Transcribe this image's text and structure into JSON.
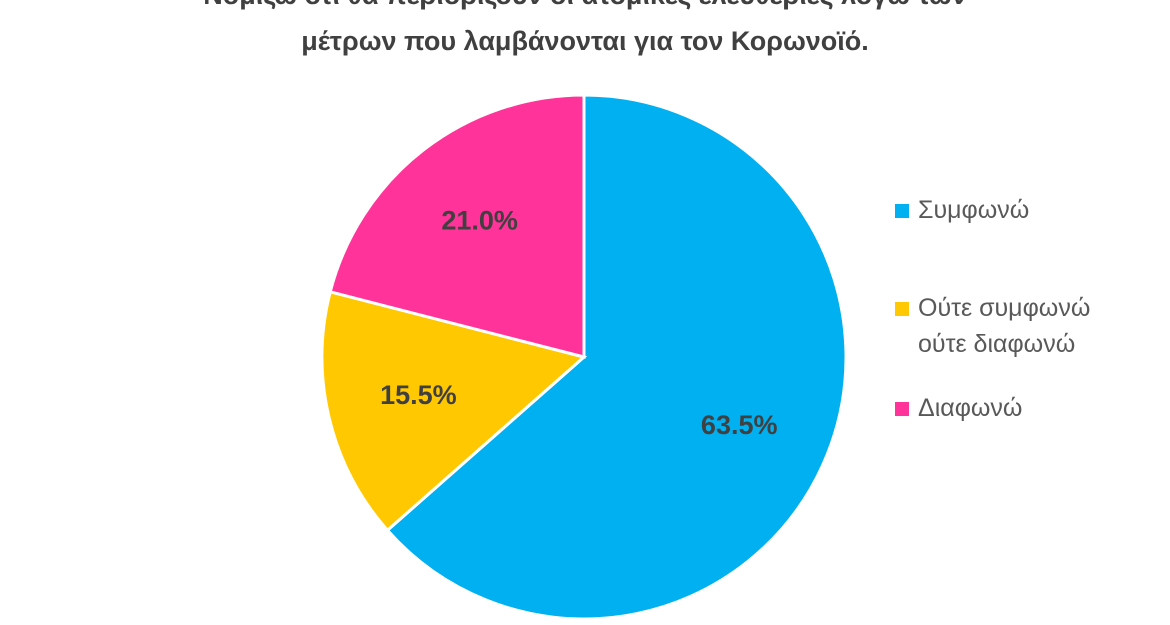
{
  "title_line1": "Νομίζω ότι θα περιορίζουν οι ατομικές ελευθερίες λόγω των",
  "title_line2": "μέτρων που λαμβάνονται για τον Κορωνοϊό.",
  "chart_data": {
    "type": "pie",
    "title": "Νομίζω ότι θα περιορίζουν οι ατομικές ελευθερίες λόγω των μέτρων που λαμβάνονται για τον Κορωνοϊό.",
    "categories": [
      "Συμφωνώ",
      "Ούτε συμφωνώ ούτε διαφωνώ",
      "Διαφωνώ"
    ],
    "values": [
      63.5,
      15.5,
      21.0
    ],
    "data_labels": [
      "63.5%",
      "15.5%",
      "21.0%"
    ],
    "colors": [
      "#00B0F0",
      "#FFC800",
      "#FF3399"
    ],
    "legend_position": "right"
  },
  "legend": {
    "items": [
      {
        "label": "Συμφωνώ",
        "color": "#00B0F0"
      },
      {
        "label": "Ούτε συμφωνώ ούτε διαφωνώ",
        "color": "#FFC800"
      },
      {
        "label": "Διαφωνώ",
        "color": "#FF3399"
      }
    ]
  }
}
